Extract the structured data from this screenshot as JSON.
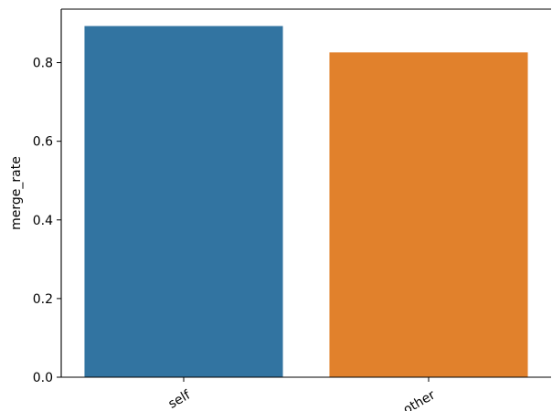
{
  "chart_data": {
    "type": "bar",
    "categories": [
      "self",
      "other"
    ],
    "values": [
      0.893,
      0.826
    ],
    "title": "",
    "xlabel": "",
    "ylabel": "merge_rate",
    "ylim": [
      0,
      0.936
    ],
    "yticks": [
      "0.0",
      "0.2",
      "0.4",
      "0.6",
      "0.8"
    ],
    "grid": false,
    "colors": [
      "#3274a1",
      "#e1812c"
    ]
  }
}
